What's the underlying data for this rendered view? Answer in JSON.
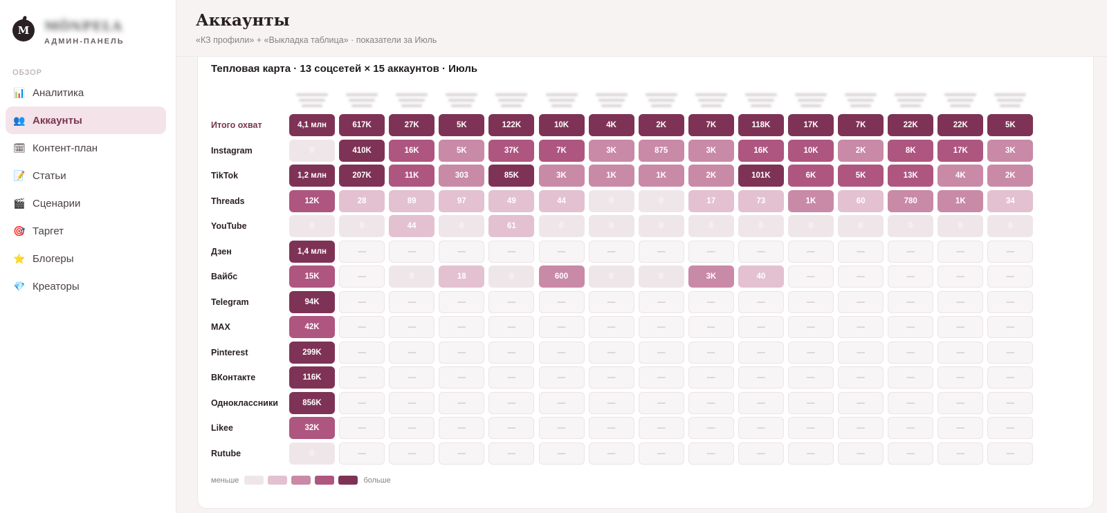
{
  "brand": {
    "logo_letter": "M",
    "name": "MÖNPELA",
    "subtitle": "АДМИН-ПАНЕЛЬ"
  },
  "sidebar": {
    "section": "ОБЗОР",
    "items": [
      {
        "label": "Аналитика",
        "icon": "📊",
        "icon_name": "chart-icon",
        "active": false
      },
      {
        "label": "Аккаунты",
        "icon": "👥",
        "icon_name": "users-icon",
        "active": true
      },
      {
        "label": "Контент-план",
        "icon": "🗓",
        "icon_name": "calendar-icon",
        "active": false
      },
      {
        "label": "Статьи",
        "icon": "📝",
        "icon_name": "memo-icon",
        "active": false
      },
      {
        "label": "Сценарии",
        "icon": "🎬",
        "icon_name": "clapper-icon",
        "active": false
      },
      {
        "label": "Таргет",
        "icon": "🎯",
        "icon_name": "target-icon",
        "active": false
      },
      {
        "label": "Блогеры",
        "icon": "⭐",
        "icon_name": "star-icon",
        "active": false
      },
      {
        "label": "Креаторы",
        "icon": "💎",
        "icon_name": "gem-icon",
        "active": false
      }
    ]
  },
  "header": {
    "title": "Аккаунты",
    "subtitle": "«КЗ профили» + «Выкладка таблица» · показатели за Июль"
  },
  "heatmap": {
    "title": "Тепловая карта · 13 соцсетей × 15 аккаунтов · Июль",
    "legend": {
      "less": "меньше",
      "more": "больше"
    },
    "colors": {
      "l0": "#f8f5f6",
      "l1": "#efe6ea",
      "l2": "#e3c1d0",
      "l3": "#c98aa7",
      "l4": "#ae5680",
      "l5": "#7e3356"
    },
    "rows": [
      {
        "label": "Итого охват",
        "total": true,
        "cells": [
          [
            "4,1 млн",
            5
          ],
          [
            "617K",
            5
          ],
          [
            "27K",
            5
          ],
          [
            "5K",
            5
          ],
          [
            "122K",
            5
          ],
          [
            "10K",
            5
          ],
          [
            "4K",
            5
          ],
          [
            "2K",
            5
          ],
          [
            "7K",
            5
          ],
          [
            "118K",
            5
          ],
          [
            "17K",
            5
          ],
          [
            "7K",
            5
          ],
          [
            "22K",
            5
          ],
          [
            "22K",
            5
          ],
          [
            "5K",
            5
          ]
        ]
      },
      {
        "label": "Instagram",
        "cells": [
          [
            "0",
            1
          ],
          [
            "410K",
            5
          ],
          [
            "16K",
            4
          ],
          [
            "5K",
            3
          ],
          [
            "37K",
            4
          ],
          [
            "7K",
            4
          ],
          [
            "3K",
            3
          ],
          [
            "875",
            3
          ],
          [
            "3K",
            3
          ],
          [
            "16K",
            4
          ],
          [
            "10K",
            4
          ],
          [
            "2K",
            3
          ],
          [
            "8K",
            4
          ],
          [
            "17K",
            4
          ],
          [
            "3K",
            3
          ]
        ]
      },
      {
        "label": "TikTok",
        "cells": [
          [
            "1,2 млн",
            5
          ],
          [
            "207K",
            5
          ],
          [
            "11K",
            4
          ],
          [
            "303",
            3
          ],
          [
            "85K",
            5
          ],
          [
            "3K",
            3
          ],
          [
            "1K",
            3
          ],
          [
            "1K",
            3
          ],
          [
            "2K",
            3
          ],
          [
            "101K",
            5
          ],
          [
            "6K",
            4
          ],
          [
            "5K",
            4
          ],
          [
            "13K",
            4
          ],
          [
            "4K",
            3
          ],
          [
            "2K",
            3
          ]
        ]
      },
      {
        "label": "Threads",
        "cells": [
          [
            "12K",
            4
          ],
          [
            "28",
            2
          ],
          [
            "89",
            2
          ],
          [
            "97",
            2
          ],
          [
            "49",
            2
          ],
          [
            "44",
            2
          ],
          [
            "0",
            1
          ],
          [
            "0",
            1
          ],
          [
            "17",
            2
          ],
          [
            "73",
            2
          ],
          [
            "1K",
            3
          ],
          [
            "60",
            2
          ],
          [
            "780",
            3
          ],
          [
            "1K",
            3
          ],
          [
            "34",
            2
          ]
        ]
      },
      {
        "label": "YouTube",
        "cells": [
          [
            "0",
            1
          ],
          [
            "0",
            1
          ],
          [
            "44",
            2
          ],
          [
            "0",
            1
          ],
          [
            "61",
            2
          ],
          [
            "0",
            1
          ],
          [
            "0",
            1
          ],
          [
            "0",
            1
          ],
          [
            "0",
            1
          ],
          [
            "0",
            1
          ],
          [
            "0",
            1
          ],
          [
            "0",
            1
          ],
          [
            "0",
            1
          ],
          [
            "0",
            1
          ],
          [
            "0",
            1
          ]
        ]
      },
      {
        "label": "Дзен",
        "cells": [
          [
            "1,4 млн",
            5
          ],
          [
            "—",
            0
          ],
          [
            "—",
            0
          ],
          [
            "—",
            0
          ],
          [
            "—",
            0
          ],
          [
            "—",
            0
          ],
          [
            "—",
            0
          ],
          [
            "—",
            0
          ],
          [
            "—",
            0
          ],
          [
            "—",
            0
          ],
          [
            "—",
            0
          ],
          [
            "—",
            0
          ],
          [
            "—",
            0
          ],
          [
            "—",
            0
          ],
          [
            "—",
            0
          ]
        ]
      },
      {
        "label": "Вайбс",
        "cells": [
          [
            "15K",
            4
          ],
          [
            "—",
            0
          ],
          [
            "0",
            1
          ],
          [
            "18",
            2
          ],
          [
            "0",
            1
          ],
          [
            "600",
            3
          ],
          [
            "0",
            1
          ],
          [
            "0",
            1
          ],
          [
            "3K",
            3
          ],
          [
            "40",
            2
          ],
          [
            "—",
            0
          ],
          [
            "—",
            0
          ],
          [
            "—",
            0
          ],
          [
            "—",
            0
          ],
          [
            "—",
            0
          ]
        ]
      },
      {
        "label": "Telegram",
        "cells": [
          [
            "94K",
            5
          ],
          [
            "—",
            0
          ],
          [
            "—",
            0
          ],
          [
            "—",
            0
          ],
          [
            "—",
            0
          ],
          [
            "—",
            0
          ],
          [
            "—",
            0
          ],
          [
            "—",
            0
          ],
          [
            "—",
            0
          ],
          [
            "—",
            0
          ],
          [
            "—",
            0
          ],
          [
            "—",
            0
          ],
          [
            "—",
            0
          ],
          [
            "—",
            0
          ],
          [
            "—",
            0
          ]
        ]
      },
      {
        "label": "MAX",
        "cells": [
          [
            "42K",
            4
          ],
          [
            "—",
            0
          ],
          [
            "—",
            0
          ],
          [
            "—",
            0
          ],
          [
            "—",
            0
          ],
          [
            "—",
            0
          ],
          [
            "—",
            0
          ],
          [
            "—",
            0
          ],
          [
            "—",
            0
          ],
          [
            "—",
            0
          ],
          [
            "—",
            0
          ],
          [
            "—",
            0
          ],
          [
            "—",
            0
          ],
          [
            "—",
            0
          ],
          [
            "—",
            0
          ]
        ]
      },
      {
        "label": "Pinterest",
        "cells": [
          [
            "299K",
            5
          ],
          [
            "—",
            0
          ],
          [
            "—",
            0
          ],
          [
            "—",
            0
          ],
          [
            "—",
            0
          ],
          [
            "—",
            0
          ],
          [
            "—",
            0
          ],
          [
            "—",
            0
          ],
          [
            "—",
            0
          ],
          [
            "—",
            0
          ],
          [
            "—",
            0
          ],
          [
            "—",
            0
          ],
          [
            "—",
            0
          ],
          [
            "—",
            0
          ],
          [
            "—",
            0
          ]
        ]
      },
      {
        "label": "ВКонтакте",
        "cells": [
          [
            "116K",
            5
          ],
          [
            "—",
            0
          ],
          [
            "—",
            0
          ],
          [
            "—",
            0
          ],
          [
            "—",
            0
          ],
          [
            "—",
            0
          ],
          [
            "—",
            0
          ],
          [
            "—",
            0
          ],
          [
            "—",
            0
          ],
          [
            "—",
            0
          ],
          [
            "—",
            0
          ],
          [
            "—",
            0
          ],
          [
            "—",
            0
          ],
          [
            "—",
            0
          ],
          [
            "—",
            0
          ]
        ]
      },
      {
        "label": "Одноклассники",
        "cells": [
          [
            "856K",
            5
          ],
          [
            "—",
            0
          ],
          [
            "—",
            0
          ],
          [
            "—",
            0
          ],
          [
            "—",
            0
          ],
          [
            "—",
            0
          ],
          [
            "—",
            0
          ],
          [
            "—",
            0
          ],
          [
            "—",
            0
          ],
          [
            "—",
            0
          ],
          [
            "—",
            0
          ],
          [
            "—",
            0
          ],
          [
            "—",
            0
          ],
          [
            "—",
            0
          ],
          [
            "—",
            0
          ]
        ]
      },
      {
        "label": "Likee",
        "cells": [
          [
            "32K",
            4
          ],
          [
            "—",
            0
          ],
          [
            "—",
            0
          ],
          [
            "—",
            0
          ],
          [
            "—",
            0
          ],
          [
            "—",
            0
          ],
          [
            "—",
            0
          ],
          [
            "—",
            0
          ],
          [
            "—",
            0
          ],
          [
            "—",
            0
          ],
          [
            "—",
            0
          ],
          [
            "—",
            0
          ],
          [
            "—",
            0
          ],
          [
            "—",
            0
          ],
          [
            "—",
            0
          ]
        ]
      },
      {
        "label": "Rutube",
        "cells": [
          [
            "0",
            1
          ],
          [
            "—",
            0
          ],
          [
            "—",
            0
          ],
          [
            "—",
            0
          ],
          [
            "—",
            0
          ],
          [
            "—",
            0
          ],
          [
            "—",
            0
          ],
          [
            "—",
            0
          ],
          [
            "—",
            0
          ],
          [
            "—",
            0
          ],
          [
            "—",
            0
          ],
          [
            "—",
            0
          ],
          [
            "—",
            0
          ],
          [
            "—",
            0
          ],
          [
            "—",
            0
          ]
        ]
      }
    ]
  }
}
